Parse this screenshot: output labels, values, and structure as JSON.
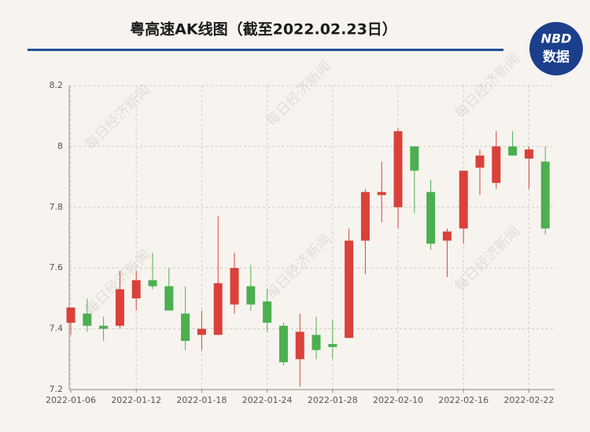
{
  "chart_data": {
    "type": "candlestick",
    "title": "粤高速AK线图（截至2022.02.23日）",
    "logo": {
      "line1": "NBD",
      "line2": "数据"
    },
    "watermark": "每日经济新闻",
    "categories": [
      "2022-01-06",
      null,
      null,
      null,
      "2022-01-12",
      null,
      null,
      null,
      "2022-01-18",
      null,
      null,
      null,
      "2022-01-24",
      null,
      null,
      null,
      "2022-01-28",
      null,
      null,
      null,
      "2022-02-10",
      null,
      null,
      null,
      "2022-02-16",
      null,
      null,
      null,
      "2022-02-22",
      null
    ],
    "open": [
      7.42,
      7.45,
      7.41,
      7.41,
      7.5,
      7.56,
      7.54,
      7.45,
      7.38,
      7.38,
      7.48,
      7.54,
      7.49,
      7.41,
      7.3,
      7.38,
      7.35,
      7.37,
      7.69,
      7.84,
      7.8,
      8.0,
      7.85,
      7.69,
      7.73,
      7.93,
      7.88,
      8.0,
      7.96,
      7.95
    ],
    "close": [
      7.47,
      7.41,
      7.4,
      7.53,
      7.56,
      7.54,
      7.46,
      7.36,
      7.4,
      7.55,
      7.6,
      7.48,
      7.42,
      7.29,
      7.39,
      7.33,
      7.34,
      7.69,
      7.85,
      7.85,
      8.05,
      7.92,
      7.68,
      7.72,
      7.92,
      7.97,
      8.0,
      7.97,
      7.99,
      7.73
    ],
    "high": [
      7.47,
      7.5,
      7.44,
      7.59,
      7.59,
      7.65,
      7.6,
      7.54,
      7.46,
      7.77,
      7.65,
      7.61,
      7.53,
      7.42,
      7.45,
      7.44,
      7.43,
      7.73,
      7.86,
      7.95,
      8.06,
      8.0,
      7.89,
      7.73,
      7.92,
      7.99,
      8.05,
      8.05,
      8.0,
      8.0
    ],
    "low": [
      7.38,
      7.39,
      7.36,
      7.4,
      7.46,
      7.53,
      7.46,
      7.33,
      7.33,
      7.38,
      7.45,
      7.46,
      7.39,
      7.28,
      7.21,
      7.3,
      7.3,
      7.37,
      7.58,
      7.75,
      7.73,
      7.78,
      7.66,
      7.57,
      7.68,
      7.84,
      7.86,
      7.97,
      7.86,
      7.71
    ],
    "up_color": "#d9413a",
    "down_color": "#4caf50",
    "ylim": [
      7.2,
      8.2
    ],
    "yticks": [
      7.2,
      7.4,
      7.6,
      7.8,
      8,
      8.2
    ],
    "grid": true
  }
}
